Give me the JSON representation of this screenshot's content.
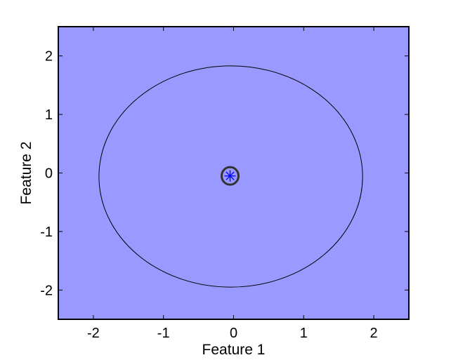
{
  "chart_data": {
    "type": "scatter",
    "title": "",
    "xlabel": "Feature 1",
    "ylabel": "Feature 2",
    "xlim": [
      -2.5,
      2.5
    ],
    "ylim": [
      -2.5,
      2.5
    ],
    "xticks": [
      -2,
      -1,
      0,
      1,
      2
    ],
    "yticks": [
      -2,
      -1,
      0,
      1,
      2
    ],
    "xtick_labels": [
      "-2",
      "-1",
      "0",
      "1",
      "2"
    ],
    "ytick_labels": [
      "-2",
      "-1",
      "0",
      "1",
      "2"
    ],
    "grid": false,
    "background_color": "#9999ff",
    "points": [
      {
        "x": -0.05,
        "y": -0.05,
        "marker": "asterisk",
        "color": "#0000ff"
      }
    ],
    "circles": [
      {
        "cx": -0.05,
        "cy": -0.05,
        "rx": 0.12,
        "ry": 0.15,
        "stroke": "#333333",
        "role": "highlight-ring"
      }
    ],
    "ellipses": [
      {
        "cx": -0.04,
        "cy": -0.06,
        "rx": 1.88,
        "ry": 1.89,
        "stroke": "#000000",
        "role": "contour"
      }
    ]
  }
}
